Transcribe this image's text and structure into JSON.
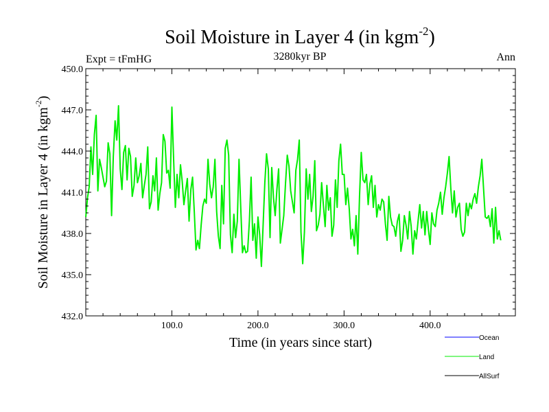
{
  "chart_data": {
    "type": "line",
    "title": "Soil Moisture in Layer 4 (in kgm",
    "title_sup": "-2",
    "title_close": ")",
    "subtitle": "3280kyr BP",
    "left_label": "Expt = tFmHG",
    "right_label": "Ann",
    "xlabel": "Time (in years since start)",
    "ylabel": "Soil Moisture in Layer 4 (in kgm",
    "ylabel_sup": "-2",
    "ylabel_close": ")",
    "xlim": [
      0,
      499
    ],
    "ylim": [
      432.0,
      450.0
    ],
    "x_ticks": [
      100,
      200,
      300,
      400
    ],
    "x_tick_labels": [
      "100.0",
      "200.0",
      "300.0",
      "400.0"
    ],
    "y_ticks": [
      432,
      435,
      438,
      441,
      444,
      447,
      450
    ],
    "y_tick_labels": [
      "432.0",
      "435.0",
      "438.0",
      "441.0",
      "444.0",
      "447.0",
      "450.0"
    ],
    "grid": false,
    "legend_position": "bottom-right",
    "series": [
      {
        "name": "Land",
        "color": "#00ee00",
        "x_start": 0,
        "x_step": 2,
        "values": [
          439.2,
          440.6,
          441.4,
          444.3,
          442.3,
          445.2,
          446.6,
          441.1,
          443.4,
          442.8,
          442.1,
          441.4,
          441.8,
          444.6,
          443.8,
          439.3,
          443.6,
          446.2,
          444.8,
          447.3,
          442.7,
          441.2,
          443.9,
          444.4,
          441.9,
          444.2,
          443.6,
          440.7,
          441.5,
          443.5,
          441.7,
          442.2,
          443.1,
          440.6,
          441.5,
          442.3,
          444.3,
          439.8,
          440.3,
          442.2,
          441.1,
          443.5,
          439.7,
          440.9,
          441.7,
          445.2,
          444.7,
          442.4,
          442.6,
          441.3,
          447.2,
          443.4,
          439.9,
          442.3,
          440.6,
          443.0,
          441.8,
          440.1,
          441.1,
          442.0,
          438.9,
          441.2,
          442.1,
          439.6,
          436.8,
          437.5,
          436.9,
          438.6,
          440.0,
          440.5,
          440.2,
          443.4,
          441.6,
          440.6,
          441.4,
          443.4,
          439.6,
          437.8,
          436.9,
          441.5,
          438.7,
          444.2,
          444.8,
          443.7,
          437.9,
          436.6,
          439.4,
          437.7,
          438.9,
          443.4,
          439.9,
          436.6,
          437.1,
          436.6,
          436.7,
          438.9,
          442.1,
          437.5,
          438.7,
          436.2,
          439.2,
          437.9,
          435.6,
          438.6,
          441.7,
          443.8,
          442.7,
          437.7,
          442.8,
          440.6,
          439.3,
          441.2,
          442.7,
          437.3,
          438.3,
          439.3,
          441.6,
          443.7,
          442.9,
          441.1,
          440.3,
          439.5,
          442.6,
          443.4,
          444.8,
          438.1,
          435.8,
          438.1,
          442.7,
          440.5,
          442.3,
          439.6,
          440.7,
          443.3,
          438.2,
          438.6,
          439.4,
          441.7,
          440.1,
          438.5,
          441.5,
          439.7,
          440.6,
          437.8,
          438.6,
          441.9,
          439.9,
          443.3,
          444.5,
          442.3,
          442.3,
          440.1,
          441.3,
          439.8,
          437.6,
          438.3,
          437.1,
          439.3,
          436.5,
          440.7,
          443.9,
          441.9,
          441.7,
          442.3,
          440.1,
          441.6,
          442.2,
          439.9,
          441.5,
          439.2,
          440.1,
          439.7,
          440.5,
          440.3,
          438.7,
          437.5,
          440.7,
          439.2,
          438.6,
          438.5,
          437.8,
          438.9,
          439.4,
          436.7,
          437.5,
          439.3,
          438.6,
          437.6,
          439.6,
          438.5,
          436.5,
          438.2,
          437.6,
          438.9,
          440.1,
          438.4,
          439.6,
          437.9,
          439.6,
          438.3,
          437.2,
          439.5,
          438.7,
          438.5,
          439.7,
          440.2,
          441.0,
          439.4,
          440.6,
          441.4,
          442.4,
          443.6,
          441.3,
          439.5,
          441.1,
          439.2,
          439.9,
          440.2,
          438.3,
          437.8,
          438.1,
          440.2,
          439.3,
          440.2,
          439.8,
          440.5,
          440.9,
          440.2,
          441.4,
          442.2,
          443.4,
          441.3,
          439.2,
          439.1,
          439.3,
          438.5,
          439.8,
          437.3,
          439.9,
          437.6,
          438.2,
          437.5
        ]
      }
    ]
  },
  "legend": {
    "items": [
      {
        "label": "Ocean",
        "color": "#0000ff"
      },
      {
        "label": "Land",
        "color": "#00ee00"
      },
      {
        "label": "AllSurf",
        "color": "#000000"
      }
    ]
  }
}
